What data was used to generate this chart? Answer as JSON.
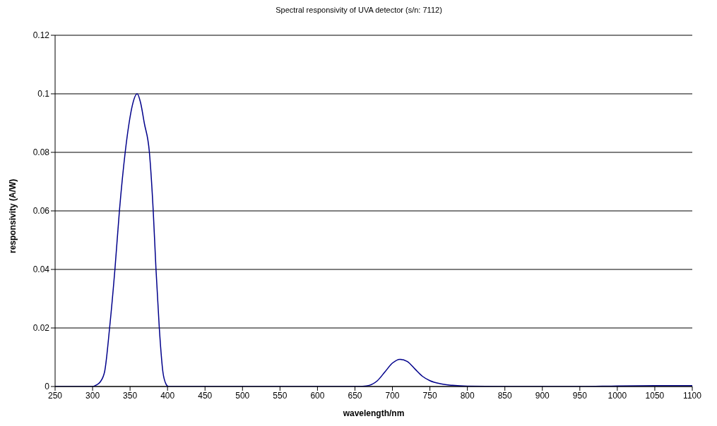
{
  "chart_data": {
    "type": "line",
    "title": "Spectral responsivity of UVA detector (s/n: 7112)",
    "xlabel": "wavelength/nm",
    "ylabel": "responsivity (A/W)",
    "x": [
      250,
      300,
      305,
      310,
      316,
      322.7,
      329.8,
      335.8,
      343.5,
      348.7,
      353,
      359.5,
      364,
      369,
      375.8,
      380.9,
      384.6,
      389,
      393.8,
      398,
      401,
      450,
      500,
      550,
      600,
      650,
      665,
      680,
      690,
      700,
      710,
      720,
      730,
      740,
      750,
      765,
      780,
      800,
      850,
      900,
      950,
      1000,
      1050,
      1100
    ],
    "series": [
      {
        "color": "#00008b",
        "values": [
          0,
          0,
          0.0005,
          0.0015,
          0.005,
          0.02,
          0.04,
          0.06,
          0.08,
          0.09,
          0.096,
          0.1,
          0.097,
          0.09,
          0.08,
          0.06,
          0.04,
          0.02,
          0.005,
          0.0008,
          0,
          0,
          0,
          0,
          0,
          0,
          0.0002,
          0.002,
          0.005,
          0.008,
          0.0093,
          0.0085,
          0.006,
          0.0035,
          0.002,
          0.0009,
          0.0004,
          0.0001,
          0,
          0,
          0,
          0.0002,
          0.0003,
          0.0003
        ]
      }
    ],
    "xlim": [
      250,
      1100
    ],
    "xticks": [
      250,
      300,
      350,
      400,
      450,
      500,
      550,
      600,
      650,
      700,
      750,
      800,
      850,
      900,
      950,
      1000,
      1050,
      1100
    ],
    "ylim": [
      0,
      0.12
    ],
    "yticks": [
      0,
      0.02,
      0.04,
      0.06,
      0.08,
      0.1,
      0.12
    ],
    "grid": "y",
    "legend": false,
    "marker": "none",
    "line_style": "solid"
  }
}
